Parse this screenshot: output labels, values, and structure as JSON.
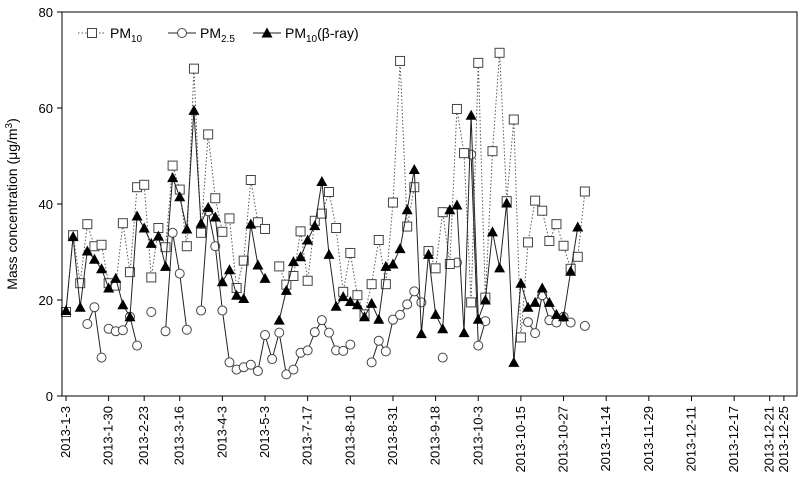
{
  "chart_data": {
    "type": "line",
    "ylabel": "Mass concentration (μg/m³)",
    "ylabel_parts": [
      "Mass concentration (μg/m",
      "3",
      ")"
    ],
    "ylim": [
      0,
      80
    ],
    "yticks": [
      0,
      20,
      40,
      60,
      80
    ],
    "x_domain": [
      1,
      103
    ],
    "x_tick_labels": [
      "2013-1-3",
      "2013-1-30",
      "2013-2-23",
      "2013-3-16",
      "2013-4-3",
      "2013-5-3",
      "2013-7-17",
      "2013-8-10",
      "2013-8-31",
      "2013-9-18",
      "2013-10-3",
      "2013-10-15",
      "2013-10-27",
      "2013-11-14",
      "2013-11-29",
      "2013-12-11",
      "2013-12-17",
      "2013-12-21",
      "2013-12-25"
    ],
    "x_tick_positions": [
      1,
      7,
      12,
      17,
      23,
      29,
      35,
      41,
      47,
      53,
      59,
      65,
      71,
      77,
      83,
      89,
      95,
      100,
      102
    ],
    "legend": {
      "placement": "top-left",
      "entries": [
        {
          "base": "PM",
          "sub": "10",
          "suffix": ""
        },
        {
          "base": "PM",
          "sub": "2.5",
          "suffix": ""
        },
        {
          "base": "PM",
          "sub": "10",
          "suffix": "(β-ray)"
        }
      ]
    },
    "series": [
      {
        "name": "PM10",
        "marker": "square",
        "line": "dotted",
        "segments": [
          [
            [
              1,
              17.5
            ],
            [
              2,
              33.5
            ],
            [
              3,
              23.5
            ],
            [
              4,
              35.8
            ],
            [
              5,
              31.2
            ],
            [
              6,
              31.5
            ],
            [
              7,
              23.5
            ],
            [
              8,
              23
            ],
            [
              9,
              36
            ],
            [
              10,
              25.8
            ],
            [
              11,
              43.5
            ],
            [
              12,
              44
            ],
            [
              13,
              24.7
            ],
            [
              14,
              35
            ],
            [
              15,
              31
            ],
            [
              16,
              48
            ],
            [
              17,
              43
            ],
            [
              18,
              31.2
            ],
            [
              19,
              68.2
            ],
            [
              20,
              34
            ],
            [
              21,
              54.5
            ],
            [
              22,
              41.2
            ],
            [
              23,
              34.2
            ],
            [
              24,
              37
            ],
            [
              25,
              22.5
            ],
            [
              26,
              28.2
            ],
            [
              27,
              45
            ],
            [
              28,
              36.2
            ],
            [
              29,
              34.8
            ]
          ],
          [
            [
              31,
              27
            ],
            [
              32,
              23.2
            ],
            [
              33,
              25
            ],
            [
              34,
              34.3
            ],
            [
              35,
              24
            ],
            [
              36,
              36.5
            ],
            [
              37,
              38
            ],
            [
              38,
              42.5
            ],
            [
              39,
              35
            ],
            [
              40,
              21.7
            ],
            [
              41,
              29.8
            ],
            [
              42,
              21
            ],
            [
              43,
              17
            ],
            [
              44,
              23.3
            ],
            [
              45,
              32.5
            ],
            [
              46,
              23.3
            ],
            [
              47,
              40.3
            ],
            [
              48,
              69.8
            ],
            [
              49,
              35.3
            ],
            [
              50,
              43.5
            ]
          ],
          [
            [
              52,
              30.2
            ],
            [
              53,
              26.6
            ],
            [
              54,
              38.3
            ],
            [
              55,
              27.5
            ],
            [
              56,
              59.8
            ],
            [
              57,
              50.6
            ],
            [
              58,
              19.5
            ],
            [
              59,
              69.4
            ],
            [
              60,
              20.5
            ],
            [
              61,
              51
            ],
            [
              62,
              71.5
            ],
            [
              63,
              40.6
            ],
            [
              64,
              57.6
            ],
            [
              65,
              12.2
            ],
            [
              66,
              32
            ],
            [
              67,
              40.7
            ],
            [
              68,
              38.6
            ],
            [
              69,
              32.3
            ],
            [
              70,
              35.8
            ],
            [
              71,
              31.3
            ],
            [
              72,
              26.5
            ],
            [
              73,
              29
            ],
            [
              74,
              42.6
            ]
          ]
        ]
      },
      {
        "name": "PM2.5",
        "marker": "circle",
        "line": "solid",
        "segments": [
          [
            [
              4,
              15
            ],
            [
              5,
              18.5
            ],
            [
              6,
              8
            ]
          ],
          [
            [
              7,
              14
            ],
            [
              8,
              13.5
            ],
            [
              9,
              13.7
            ],
            [
              10,
              16.5
            ],
            [
              11,
              10.5
            ]
          ],
          [
            [
              13,
              17.5
            ]
          ],
          [
            [
              15,
              13.5
            ],
            [
              16,
              34
            ],
            [
              17,
              25.5
            ],
            [
              18,
              13.8
            ]
          ],
          [
            [
              20,
              17.8
            ],
            [
              21,
              38.5
            ],
            [
              22,
              31.2
            ],
            [
              23,
              17.8
            ],
            [
              24,
              7
            ],
            [
              25,
              5.5
            ],
            [
              26,
              6
            ],
            [
              27,
              6.5
            ],
            [
              28,
              5.2
            ],
            [
              29,
              12.7
            ],
            [
              30,
              7.7
            ],
            [
              31,
              13.2
            ],
            [
              32,
              4.5
            ],
            [
              33,
              5.5
            ],
            [
              34,
              9
            ],
            [
              35,
              9.5
            ],
            [
              36,
              13.3
            ],
            [
              37,
              15.8
            ],
            [
              38,
              13.2
            ],
            [
              39,
              9.5
            ],
            [
              40,
              9.4
            ],
            [
              41,
              10.7
            ]
          ],
          [
            [
              44,
              7
            ],
            [
              45,
              11.5
            ],
            [
              46,
              9.3
            ],
            [
              47,
              15.9
            ],
            [
              48,
              16.9
            ],
            [
              49,
              19.1
            ],
            [
              50,
              21.8
            ],
            [
              51,
              19.5
            ]
          ],
          [
            [
              54,
              8
            ]
          ],
          [
            [
              56,
              27.8
            ]
          ],
          [
            [
              58,
              50.3
            ],
            [
              59,
              10.5
            ],
            [
              60,
              15.6
            ]
          ],
          [
            [
              66,
              15.4
            ],
            [
              67,
              13.1
            ],
            [
              68,
              21
            ],
            [
              69,
              15.8
            ],
            [
              70,
              15.3
            ],
            [
              71,
              16.5
            ],
            [
              72,
              15.3
            ]
          ],
          [
            [
              74,
              14.6
            ]
          ]
        ]
      },
      {
        "name": "PM10 (β-ray)",
        "marker": "triangle",
        "line": "solid",
        "segments": [
          [
            [
              1,
              17.8
            ],
            [
              2,
              33.2
            ],
            [
              3,
              18.5
            ],
            [
              4,
              30.2
            ],
            [
              5,
              28.5
            ],
            [
              6,
              26.5
            ],
            [
              7,
              22.5
            ],
            [
              8,
              24.5
            ],
            [
              9,
              19
            ],
            [
              10,
              16.5
            ],
            [
              11,
              37.5
            ],
            [
              12,
              35
            ],
            [
              13,
              31.8
            ],
            [
              14,
              33.3
            ],
            [
              15,
              27
            ],
            [
              16,
              45.5
            ],
            [
              17,
              41.5
            ],
            [
              18,
              34.8
            ],
            [
              19,
              59.5
            ],
            [
              20,
              36
            ],
            [
              21,
              39.3
            ],
            [
              22,
              37.3
            ],
            [
              23,
              23.8
            ],
            [
              24,
              26.3
            ],
            [
              25,
              21
            ],
            [
              26,
              20.3
            ],
            [
              27,
              35.8
            ],
            [
              28,
              27.3
            ],
            [
              29,
              24.5
            ]
          ],
          [
            [
              31,
              15.8
            ],
            [
              32,
              22
            ],
            [
              33,
              28
            ],
            [
              34,
              29
            ],
            [
              35,
              32.5
            ],
            [
              36,
              35.5
            ],
            [
              37,
              44.7
            ],
            [
              38,
              29.5
            ],
            [
              39,
              18.7
            ],
            [
              40,
              20.7
            ],
            [
              41,
              19.7
            ],
            [
              42,
              19
            ],
            [
              43,
              16.5
            ],
            [
              44,
              19.3
            ],
            [
              45,
              16
            ],
            [
              46,
              27
            ],
            [
              47,
              27.5
            ],
            [
              48,
              30.7
            ],
            [
              49,
              38.8
            ],
            [
              50,
              47.2
            ],
            [
              51,
              13
            ],
            [
              52,
              29.5
            ],
            [
              53,
              17
            ],
            [
              54,
              14
            ],
            [
              55,
              38.8
            ],
            [
              56,
              39.8
            ],
            [
              57,
              13.2
            ],
            [
              58,
              58.5
            ],
            [
              59,
              16
            ],
            [
              60,
              20
            ],
            [
              61,
              34.2
            ],
            [
              62,
              26.7
            ],
            [
              63,
              40.2
            ],
            [
              64,
              7
            ],
            [
              65,
              23.5
            ],
            [
              66,
              18.5
            ],
            [
              67,
              19.5
            ],
            [
              68,
              22.5
            ],
            [
              69,
              19.5
            ],
            [
              70,
              17
            ],
            [
              71,
              16.5
            ],
            [
              72,
              26
            ],
            [
              73,
              35.2
            ]
          ]
        ]
      }
    ]
  }
}
